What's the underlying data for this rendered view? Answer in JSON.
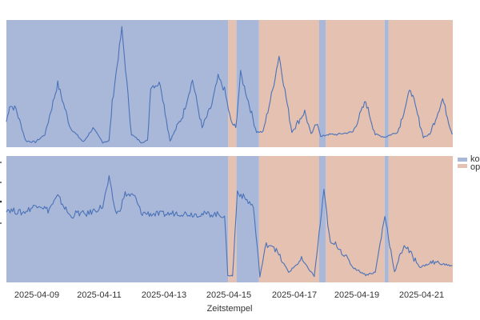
{
  "chart_data": {
    "type": "line",
    "title": "",
    "xlabel": "Zeitstempel",
    "x_ticks": [
      "2025-04-09",
      "2025-04-11",
      "2025-04-13",
      "2025-04-15",
      "2025-04-17",
      "2025-04-19",
      "2025-04-21"
    ],
    "x_range": [
      "2025-04-08",
      "2025-04-21T22:00"
    ],
    "grid": false,
    "legend": {
      "position": "right",
      "entries": [
        {
          "label": "ko",
          "color": "#a9b8d8"
        },
        {
          "label": "op",
          "color": "#e4c1b1"
        }
      ]
    },
    "colors": {
      "line": "#4a72b8",
      "band_ko": "#a9b8d8",
      "band_op": "#e4c1b1"
    },
    "bands": [
      {
        "state": "ko",
        "start": "2025-04-08T00:00",
        "end": "2025-04-14T22:00"
      },
      {
        "state": "op",
        "start": "2025-04-14T22:00",
        "end": "2025-04-15T04:00"
      },
      {
        "state": "ko",
        "start": "2025-04-15T04:00",
        "end": "2025-04-15T21:00"
      },
      {
        "state": "op",
        "start": "2025-04-15T21:00",
        "end": "2025-04-17T18:00"
      },
      {
        "state": "ko",
        "start": "2025-04-17T18:00",
        "end": "2025-04-17T23:00"
      },
      {
        "state": "op",
        "start": "2025-04-17T23:00",
        "end": "2025-04-19T19:00"
      },
      {
        "state": "ko",
        "start": "2025-04-19T19:00",
        "end": "2025-04-19T22:00"
      },
      {
        "state": "op",
        "start": "2025-04-19T22:00",
        "end": "2025-04-21T22:00"
      }
    ],
    "panels": [
      {
        "name": "top",
        "ylabel": "",
        "series": [
          {
            "name": "signal_1",
            "x_day_offset": [
              0,
              0.1,
              0.3,
              0.6,
              0.9,
              1.2,
              1.6,
              2.0,
              2.4,
              2.7,
              3.0,
              3.2,
              3.3,
              3.6,
              3.9,
              4.2,
              4.4,
              4.5,
              4.8,
              5.1,
              5.5,
              5.8,
              6.1,
              6.4,
              6.6,
              6.8,
              7.0,
              7.15,
              7.3,
              7.5,
              7.8,
              8.0,
              8.3,
              8.5,
              8.9,
              9.3,
              9.5,
              9.7,
              9.8,
              10.0,
              10.3,
              10.8,
              11.2,
              11.5,
              11.8,
              12.2,
              12.6,
              13.0,
              13.2,
              13.6,
              13.9
            ],
            "y_rel": [
              0.2,
              0.33,
              0.3,
              0.05,
              0.04,
              0.1,
              0.5,
              0.15,
              0.04,
              0.15,
              0.04,
              0.05,
              0.35,
              0.93,
              0.1,
              0.04,
              0.05,
              0.48,
              0.5,
              0.05,
              0.25,
              0.53,
              0.15,
              0.33,
              0.55,
              0.45,
              0.2,
              0.15,
              0.58,
              0.4,
              0.12,
              0.12,
              0.45,
              0.72,
              0.12,
              0.28,
              0.1,
              0.2,
              0.08,
              0.1,
              0.1,
              0.12,
              0.36,
              0.1,
              0.08,
              0.12,
              0.46,
              0.08,
              0.1,
              0.38,
              0.1
            ]
          }
        ]
      },
      {
        "name": "bottom",
        "ylabel": "",
        "series": [
          {
            "name": "signal_2",
            "x_day_offset": [
              0,
              0.5,
              1.0,
              1.3,
              1.6,
              2.0,
              2.2,
              2.5,
              3.0,
              3.2,
              3.4,
              3.5,
              3.7,
              4.0,
              4.2,
              4.6,
              5.0,
              5.3,
              5.8,
              6.5,
              6.8,
              6.9,
              7.05,
              7.2,
              7.5,
              7.7,
              7.9,
              8.1,
              8.3,
              8.8,
              9.2,
              9.6,
              9.9,
              10.1,
              10.3,
              10.8,
              11.2,
              11.5,
              11.8,
              12.1,
              12.4,
              12.9,
              13.3,
              13.9
            ],
            "y_rel": [
              0.58,
              0.55,
              0.62,
              0.57,
              0.68,
              0.52,
              0.55,
              0.54,
              0.6,
              0.82,
              0.56,
              0.55,
              0.7,
              0.68,
              0.55,
              0.54,
              0.54,
              0.55,
              0.54,
              0.54,
              0.53,
              0.06,
              0.05,
              0.72,
              0.65,
              0.6,
              0.05,
              0.3,
              0.3,
              0.08,
              0.18,
              0.05,
              0.72,
              0.3,
              0.3,
              0.12,
              0.06,
              0.08,
              0.53,
              0.08,
              0.3,
              0.12,
              0.16,
              0.13
            ]
          }
        ]
      }
    ]
  }
}
